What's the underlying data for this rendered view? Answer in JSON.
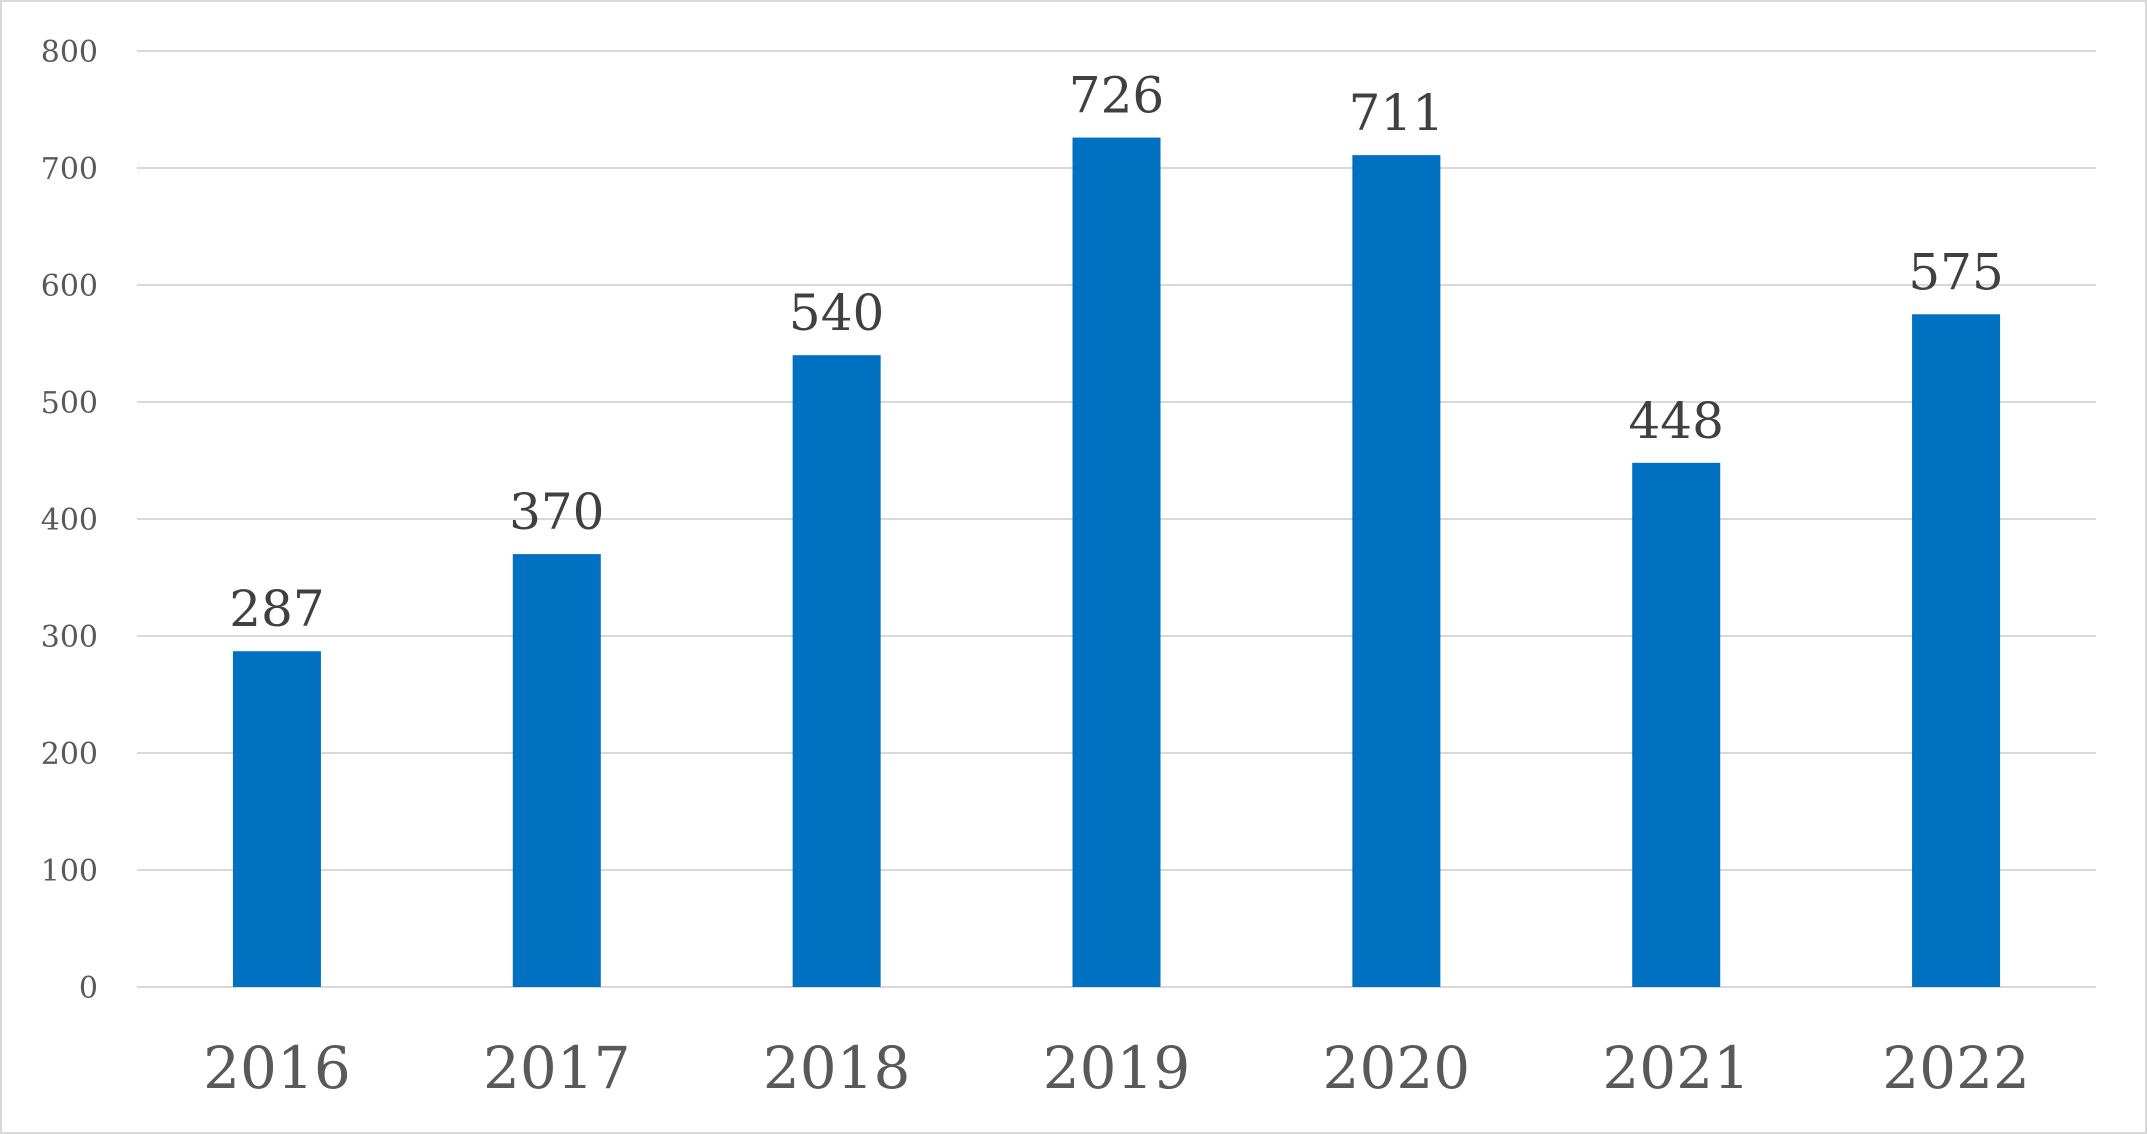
{
  "chart_data": {
    "type": "bar",
    "title": "",
    "xlabel": "",
    "ylabel": "",
    "categories": [
      "2016",
      "2017",
      "2018",
      "2019",
      "2020",
      "2021",
      "2022"
    ],
    "values": [
      287,
      370,
      540,
      726,
      711,
      448,
      575
    ],
    "data_labels": [
      "287",
      "370",
      "540",
      "726",
      "711",
      "448",
      "575"
    ],
    "ylim": [
      0,
      800
    ],
    "yticks": [
      0,
      100,
      200,
      300,
      400,
      500,
      600,
      700,
      800
    ],
    "ytick_labels": [
      "0",
      "100",
      "200",
      "300",
      "400",
      "500",
      "600",
      "700",
      "800"
    ],
    "grid": true,
    "legend": "none",
    "bar_color": "#0070C0"
  }
}
